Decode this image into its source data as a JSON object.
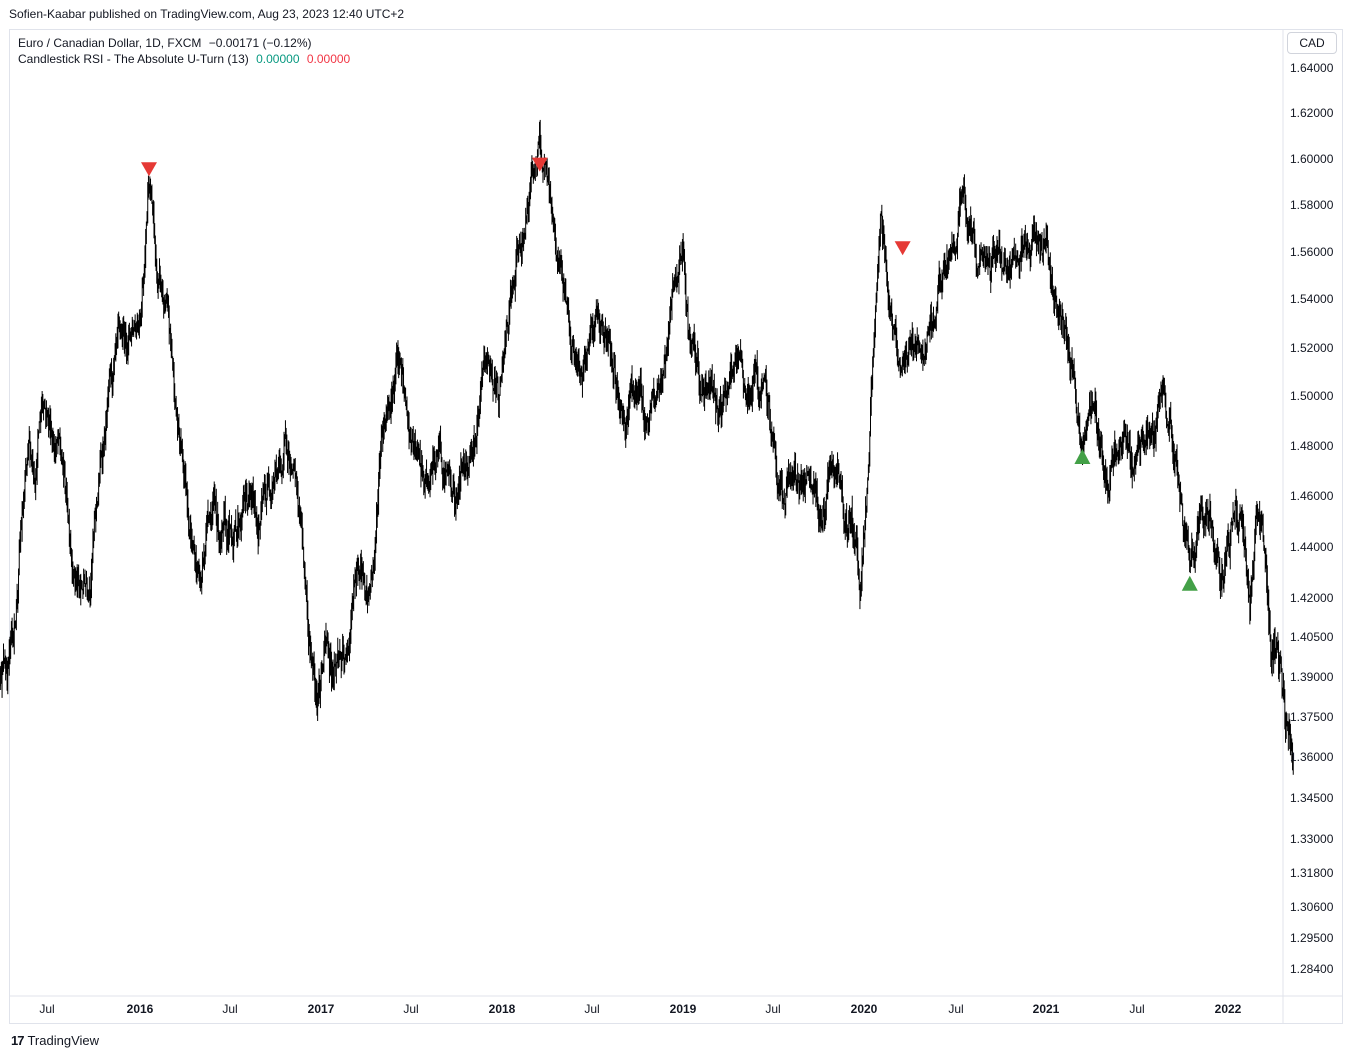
{
  "publisher_line": "Sofien-Kaabar published on TradingView.com, Aug 23, 2023 12:40 UTC+2",
  "legend": {
    "symbol": "Euro / Canadian Dollar, 1D, FXCM",
    "change": "−0.00171 (−0.12%)",
    "indicator": "Candlestick RSI - The Absolute U-Turn (13)",
    "value_green": "0.00000",
    "value_red": "0.00000"
  },
  "currency_button": "CAD",
  "footer_brand": "TradingView",
  "footer_icon": "tradingview-logo-icon",
  "colors": {
    "candles": "#000000",
    "sell_signal": "#e53935",
    "buy_signal": "#43a047",
    "legend_green": "#089981",
    "legend_red": "#f23645"
  },
  "chart_data": {
    "type": "candlestick",
    "symbol": "EURCAD",
    "ylim": [
      1.275,
      1.645
    ],
    "y_ticks": [
      "1.64000",
      "1.62000",
      "1.60000",
      "1.58000",
      "1.56000",
      "1.54000",
      "1.52000",
      "1.50000",
      "1.48000",
      "1.46000",
      "1.44000",
      "1.42000",
      "1.40500",
      "1.39000",
      "1.37500",
      "1.36000",
      "1.34500",
      "1.33000",
      "1.31800",
      "1.30600",
      "1.29500",
      "1.28400"
    ],
    "y_tick_values": [
      1.64,
      1.62,
      1.6,
      1.58,
      1.56,
      1.54,
      1.52,
      1.5,
      1.48,
      1.46,
      1.44,
      1.42,
      1.405,
      1.39,
      1.375,
      1.36,
      1.345,
      1.33,
      1.318,
      1.306,
      1.295,
      1.284
    ],
    "x_ticks": [
      {
        "label": "Jul",
        "t": 2015.5,
        "bold": false
      },
      {
        "label": "2016",
        "t": 2016.0,
        "bold": true
      },
      {
        "label": "Jul",
        "t": 2016.5,
        "bold": false
      },
      {
        "label": "2017",
        "t": 2017.0,
        "bold": true
      },
      {
        "label": "Jul",
        "t": 2017.5,
        "bold": false
      },
      {
        "label": "2018",
        "t": 2018.0,
        "bold": true
      },
      {
        "label": "Jul",
        "t": 2018.5,
        "bold": false
      },
      {
        "label": "2019",
        "t": 2019.0,
        "bold": true
      },
      {
        "label": "Jul",
        "t": 2019.5,
        "bold": false
      },
      {
        "label": "2020",
        "t": 2020.0,
        "bold": true
      },
      {
        "label": "Jul",
        "t": 2020.5,
        "bold": false
      },
      {
        "label": "2021",
        "t": 2021.0,
        "bold": true
      },
      {
        "label": "Jul",
        "t": 2021.5,
        "bold": false
      },
      {
        "label": "2022",
        "t": 2022.0,
        "bold": true
      }
    ],
    "x_range": [
      2015.12,
      2022.36
    ],
    "series": [
      {
        "t": 2015.12,
        "v": 1.305
      },
      {
        "t": 2015.16,
        "v": 1.355
      },
      {
        "t": 2015.2,
        "v": 1.375
      },
      {
        "t": 2015.24,
        "v": 1.395
      },
      {
        "t": 2015.28,
        "v": 1.395
      },
      {
        "t": 2015.32,
        "v": 1.405
      },
      {
        "t": 2015.36,
        "v": 1.445
      },
      {
        "t": 2015.4,
        "v": 1.47
      },
      {
        "t": 2015.44,
        "v": 1.475
      },
      {
        "t": 2015.48,
        "v": 1.505
      },
      {
        "t": 2015.52,
        "v": 1.49
      },
      {
        "t": 2015.56,
        "v": 1.48
      },
      {
        "t": 2015.6,
        "v": 1.46
      },
      {
        "t": 2015.64,
        "v": 1.44
      },
      {
        "t": 2015.68,
        "v": 1.42
      },
      {
        "t": 2015.72,
        "v": 1.43
      },
      {
        "t": 2015.76,
        "v": 1.45
      },
      {
        "t": 2015.8,
        "v": 1.48
      },
      {
        "t": 2015.84,
        "v": 1.5
      },
      {
        "t": 2015.88,
        "v": 1.51
      },
      {
        "t": 2015.92,
        "v": 1.52
      },
      {
        "t": 2015.96,
        "v": 1.53
      },
      {
        "t": 2016.0,
        "v": 1.54
      },
      {
        "t": 2016.03,
        "v": 1.57
      },
      {
        "t": 2016.05,
        "v": 1.6
      },
      {
        "t": 2016.07,
        "v": 1.58
      },
      {
        "t": 2016.09,
        "v": 1.55
      },
      {
        "t": 2016.12,
        "v": 1.54
      },
      {
        "t": 2016.15,
        "v": 1.53
      },
      {
        "t": 2016.18,
        "v": 1.51
      },
      {
        "t": 2016.22,
        "v": 1.48
      },
      {
        "t": 2016.26,
        "v": 1.465
      },
      {
        "t": 2016.3,
        "v": 1.44
      },
      {
        "t": 2016.34,
        "v": 1.425
      },
      {
        "t": 2016.38,
        "v": 1.46
      },
      {
        "t": 2016.42,
        "v": 1.455
      },
      {
        "t": 2016.46,
        "v": 1.44
      },
      {
        "t": 2016.5,
        "v": 1.44
      },
      {
        "t": 2016.54,
        "v": 1.45
      },
      {
        "t": 2016.58,
        "v": 1.46
      },
      {
        "t": 2016.62,
        "v": 1.455
      },
      {
        "t": 2016.66,
        "v": 1.45
      },
      {
        "t": 2016.7,
        "v": 1.46
      },
      {
        "t": 2016.74,
        "v": 1.475
      },
      {
        "t": 2016.78,
        "v": 1.47
      },
      {
        "t": 2016.82,
        "v": 1.48
      },
      {
        "t": 2016.86,
        "v": 1.46
      },
      {
        "t": 2016.9,
        "v": 1.44
      },
      {
        "t": 2016.94,
        "v": 1.4
      },
      {
        "t": 2016.98,
        "v": 1.39
      },
      {
        "t": 2017.02,
        "v": 1.4
      },
      {
        "t": 2017.06,
        "v": 1.395
      },
      {
        "t": 2017.1,
        "v": 1.4
      },
      {
        "t": 2017.14,
        "v": 1.39
      },
      {
        "t": 2017.18,
        "v": 1.42
      },
      {
        "t": 2017.22,
        "v": 1.43
      },
      {
        "t": 2017.26,
        "v": 1.42
      },
      {
        "t": 2017.3,
        "v": 1.44
      },
      {
        "t": 2017.34,
        "v": 1.49
      },
      {
        "t": 2017.38,
        "v": 1.505
      },
      {
        "t": 2017.42,
        "v": 1.515
      },
      {
        "t": 2017.46,
        "v": 1.5
      },
      {
        "t": 2017.5,
        "v": 1.48
      },
      {
        "t": 2017.54,
        "v": 1.47
      },
      {
        "t": 2017.58,
        "v": 1.46
      },
      {
        "t": 2017.62,
        "v": 1.47
      },
      {
        "t": 2017.66,
        "v": 1.48
      },
      {
        "t": 2017.7,
        "v": 1.47
      },
      {
        "t": 2017.74,
        "v": 1.46
      },
      {
        "t": 2017.78,
        "v": 1.47
      },
      {
        "t": 2017.82,
        "v": 1.48
      },
      {
        "t": 2017.86,
        "v": 1.49
      },
      {
        "t": 2017.9,
        "v": 1.505
      },
      {
        "t": 2017.94,
        "v": 1.51
      },
      {
        "t": 2017.98,
        "v": 1.5
      },
      {
        "t": 2018.02,
        "v": 1.52
      },
      {
        "t": 2018.06,
        "v": 1.54
      },
      {
        "t": 2018.1,
        "v": 1.56
      },
      {
        "t": 2018.14,
        "v": 1.58
      },
      {
        "t": 2018.18,
        "v": 1.6
      },
      {
        "t": 2018.21,
        "v": 1.605
      },
      {
        "t": 2018.24,
        "v": 1.59
      },
      {
        "t": 2018.28,
        "v": 1.57
      },
      {
        "t": 2018.32,
        "v": 1.555
      },
      {
        "t": 2018.36,
        "v": 1.54
      },
      {
        "t": 2018.4,
        "v": 1.52
      },
      {
        "t": 2018.44,
        "v": 1.5
      },
      {
        "t": 2018.48,
        "v": 1.525
      },
      {
        "t": 2018.52,
        "v": 1.535
      },
      {
        "t": 2018.56,
        "v": 1.53
      },
      {
        "t": 2018.6,
        "v": 1.515
      },
      {
        "t": 2018.64,
        "v": 1.5
      },
      {
        "t": 2018.68,
        "v": 1.49
      },
      {
        "t": 2018.72,
        "v": 1.505
      },
      {
        "t": 2018.76,
        "v": 1.5
      },
      {
        "t": 2018.8,
        "v": 1.49
      },
      {
        "t": 2018.84,
        "v": 1.495
      },
      {
        "t": 2018.88,
        "v": 1.51
      },
      {
        "t": 2018.92,
        "v": 1.525
      },
      {
        "t": 2018.96,
        "v": 1.545
      },
      {
        "t": 2019.0,
        "v": 1.555
      },
      {
        "t": 2019.04,
        "v": 1.52
      },
      {
        "t": 2019.08,
        "v": 1.505
      },
      {
        "t": 2019.12,
        "v": 1.5
      },
      {
        "t": 2019.16,
        "v": 1.505
      },
      {
        "t": 2019.2,
        "v": 1.5
      },
      {
        "t": 2019.24,
        "v": 1.505
      },
      {
        "t": 2019.28,
        "v": 1.51
      },
      {
        "t": 2019.32,
        "v": 1.505
      },
      {
        "t": 2019.36,
        "v": 1.5
      },
      {
        "t": 2019.4,
        "v": 1.505
      },
      {
        "t": 2019.44,
        "v": 1.5
      },
      {
        "t": 2019.48,
        "v": 1.49
      },
      {
        "t": 2019.52,
        "v": 1.47
      },
      {
        "t": 2019.56,
        "v": 1.46
      },
      {
        "t": 2019.6,
        "v": 1.465
      },
      {
        "t": 2019.64,
        "v": 1.47
      },
      {
        "t": 2019.68,
        "v": 1.46
      },
      {
        "t": 2019.72,
        "v": 1.455
      },
      {
        "t": 2019.76,
        "v": 1.45
      },
      {
        "t": 2019.8,
        "v": 1.46
      },
      {
        "t": 2019.84,
        "v": 1.465
      },
      {
        "t": 2019.88,
        "v": 1.455
      },
      {
        "t": 2019.92,
        "v": 1.45
      },
      {
        "t": 2019.96,
        "v": 1.44
      },
      {
        "t": 2019.98,
        "v": 1.43
      },
      {
        "t": 2020.02,
        "v": 1.47
      },
      {
        "t": 2020.06,
        "v": 1.53
      },
      {
        "t": 2020.09,
        "v": 1.575
      },
      {
        "t": 2020.12,
        "v": 1.555
      },
      {
        "t": 2020.16,
        "v": 1.53
      },
      {
        "t": 2020.2,
        "v": 1.52
      },
      {
        "t": 2020.24,
        "v": 1.515
      },
      {
        "t": 2020.28,
        "v": 1.52
      },
      {
        "t": 2020.32,
        "v": 1.515
      },
      {
        "t": 2020.36,
        "v": 1.525
      },
      {
        "t": 2020.4,
        "v": 1.54
      },
      {
        "t": 2020.44,
        "v": 1.55
      },
      {
        "t": 2020.48,
        "v": 1.56
      },
      {
        "t": 2020.52,
        "v": 1.58
      },
      {
        "t": 2020.56,
        "v": 1.57
      },
      {
        "t": 2020.6,
        "v": 1.56
      },
      {
        "t": 2020.64,
        "v": 1.555
      },
      {
        "t": 2020.68,
        "v": 1.55
      },
      {
        "t": 2020.72,
        "v": 1.56
      },
      {
        "t": 2020.76,
        "v": 1.555
      },
      {
        "t": 2020.8,
        "v": 1.545
      },
      {
        "t": 2020.84,
        "v": 1.555
      },
      {
        "t": 2020.88,
        "v": 1.56
      },
      {
        "t": 2020.92,
        "v": 1.565
      },
      {
        "t": 2020.96,
        "v": 1.57
      },
      {
        "t": 2021.0,
        "v": 1.56
      },
      {
        "t": 2021.04,
        "v": 1.545
      },
      {
        "t": 2021.08,
        "v": 1.535
      },
      {
        "t": 2021.12,
        "v": 1.52
      },
      {
        "t": 2021.16,
        "v": 1.5
      },
      {
        "t": 2021.2,
        "v": 1.48
      },
      {
        "t": 2021.24,
        "v": 1.5
      },
      {
        "t": 2021.28,
        "v": 1.49
      },
      {
        "t": 2021.32,
        "v": 1.47
      },
      {
        "t": 2021.36,
        "v": 1.475
      },
      {
        "t": 2021.4,
        "v": 1.47
      },
      {
        "t": 2021.44,
        "v": 1.475
      },
      {
        "t": 2021.48,
        "v": 1.47
      },
      {
        "t": 2021.52,
        "v": 1.48
      },
      {
        "t": 2021.56,
        "v": 1.485
      },
      {
        "t": 2021.6,
        "v": 1.49
      },
      {
        "t": 2021.64,
        "v": 1.5
      },
      {
        "t": 2021.68,
        "v": 1.49
      },
      {
        "t": 2021.72,
        "v": 1.47
      },
      {
        "t": 2021.76,
        "v": 1.44
      },
      {
        "t": 2021.8,
        "v": 1.435
      },
      {
        "t": 2021.84,
        "v": 1.445
      },
      {
        "t": 2021.88,
        "v": 1.45
      },
      {
        "t": 2021.92,
        "v": 1.44
      },
      {
        "t": 2021.96,
        "v": 1.425
      },
      {
        "t": 2022.0,
        "v": 1.44
      },
      {
        "t": 2022.04,
        "v": 1.455
      },
      {
        "t": 2022.08,
        "v": 1.445
      },
      {
        "t": 2022.12,
        "v": 1.42
      },
      {
        "t": 2022.16,
        "v": 1.45
      },
      {
        "t": 2022.2,
        "v": 1.44
      },
      {
        "t": 2022.24,
        "v": 1.4
      },
      {
        "t": 2022.28,
        "v": 1.39
      },
      {
        "t": 2022.32,
        "v": 1.37
      },
      {
        "t": 2022.36,
        "v": 1.358
      }
    ],
    "signals": [
      {
        "type": "sell",
        "t": 2016.05,
        "v": 1.596
      },
      {
        "type": "sell",
        "t": 2018.21,
        "v": 1.598
      },
      {
        "type": "sell",
        "t": 2020.21,
        "v": 1.562
      },
      {
        "type": "buy",
        "t": 2021.2,
        "v": 1.476
      },
      {
        "type": "buy",
        "t": 2021.79,
        "v": 1.426
      }
    ]
  }
}
